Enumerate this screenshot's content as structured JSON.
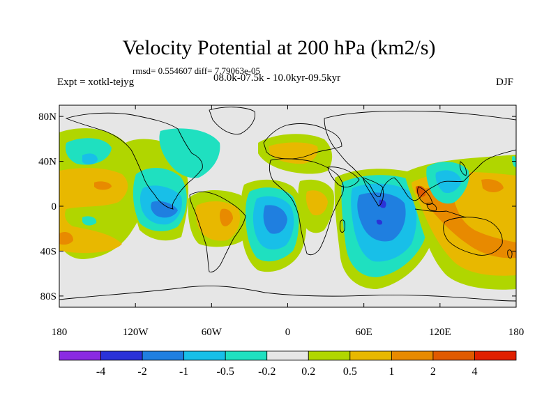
{
  "title": "Velocity Potential at 200 hPa (km2/s)",
  "stats": "rmsd= 0.554607 diff= 7.79063e-05",
  "left_label": "Expt = xotkl-tejyg",
  "center_label": "08.0k-07.5k - 10.0kyr-09.5kyr",
  "right_label": "DJF",
  "lat_ticks": [
    {
      "label": "80N",
      "lat": 80
    },
    {
      "label": "40N",
      "lat": 40
    },
    {
      "label": "0",
      "lat": 0
    },
    {
      "label": "40S",
      "lat": -40
    },
    {
      "label": "80S",
      "lat": -80
    }
  ],
  "lon_ticks": [
    {
      "label": "180",
      "lon": -180
    },
    {
      "label": "120W",
      "lon": -120
    },
    {
      "label": "60W",
      "lon": -60
    },
    {
      "label": "0",
      "lon": 0
    },
    {
      "label": "60E",
      "lon": 60
    },
    {
      "label": "120E",
      "lon": 120
    },
    {
      "label": "180",
      "lon": 180
    }
  ],
  "colorbar": {
    "colors": [
      "#8a2be2",
      "#2b32d8",
      "#1f7fe0",
      "#18bfe8",
      "#1fe0c0",
      "#e6e6e6",
      "#b0d600",
      "#e8b800",
      "#e88a00",
      "#e05a00",
      "#e02000"
    ],
    "labels": [
      "-4",
      "-2",
      "-1",
      "-0.5",
      "-0.2",
      "0.2",
      "0.5",
      "1",
      "2",
      "4"
    ]
  },
  "palette": {
    "ocean_bg": "#e6e6e6",
    "coast": "#000000"
  }
}
